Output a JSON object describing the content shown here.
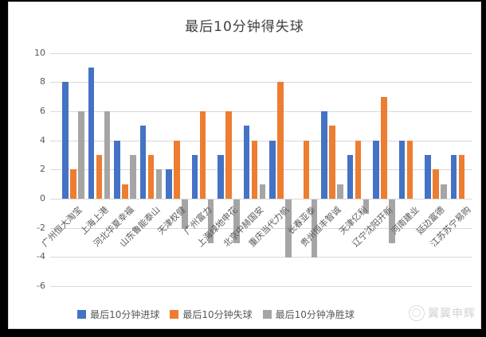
{
  "chart_data": {
    "type": "bar",
    "title": "最后10分钟得失球",
    "categories": [
      "广州恒大淘宝",
      "上海上港",
      "河北华夏幸福",
      "山东鲁能泰山",
      "天津权健",
      "广州富力",
      "上海绿地申花",
      "北京中赫国安",
      "重庆当代力帆",
      "长春亚泰",
      "贵州恒丰智诚",
      "天津亿利",
      "辽宁沈阳开新",
      "河南建业",
      "延边富德",
      "江苏苏宁易购"
    ],
    "series": [
      {
        "name": "最后10分钟进球",
        "color": "#4472C4",
        "values": [
          8,
          9,
          4,
          5,
          2,
          3,
          3,
          5,
          4,
          0,
          6,
          3,
          4,
          4,
          3,
          3
        ]
      },
      {
        "name": "最后10分钟失球",
        "color": "#ED7D31",
        "values": [
          2,
          3,
          1,
          3,
          4,
          6,
          6,
          4,
          8,
          4,
          5,
          4,
          7,
          4,
          2,
          3
        ]
      },
      {
        "name": "最后10分钟净胜球",
        "color": "#A5A5A5",
        "values": [
          6,
          6,
          3,
          2,
          -2,
          -3,
          -3,
          1,
          -4,
          -4,
          1,
          -1,
          -3,
          0,
          1,
          0
        ]
      }
    ],
    "ylim": [
      -6,
      10
    ],
    "yticks": [
      10,
      8,
      6,
      4,
      2,
      0,
      -2,
      -4,
      -6
    ],
    "grid": "horizontal",
    "legend_position": "bottom",
    "gridline_color": "#D9D9D9",
    "text_color": "#595959"
  },
  "watermark": {
    "text": "翼翼申辉",
    "logo": "circle-logo-icon"
  }
}
